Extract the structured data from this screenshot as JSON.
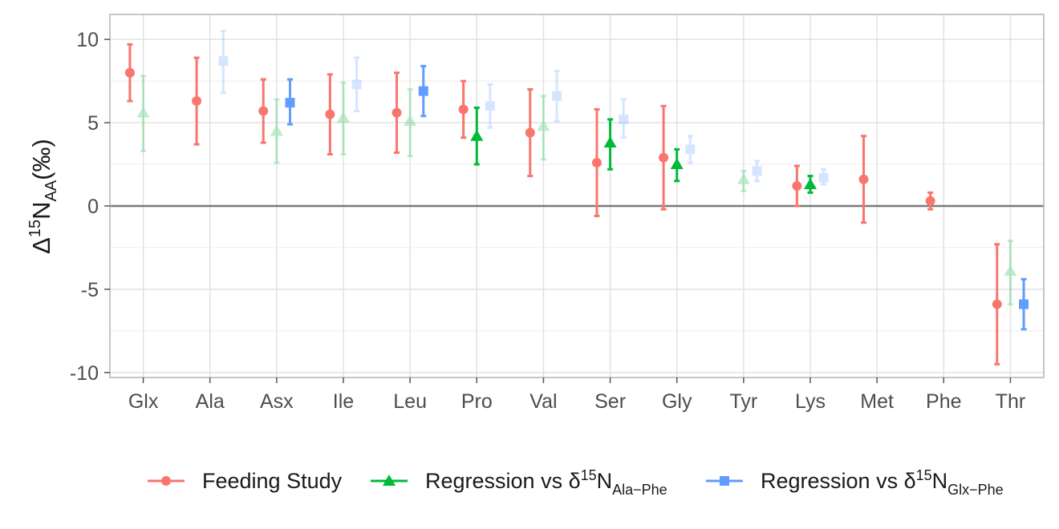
{
  "chart_data": {
    "type": "errorbar",
    "categories": [
      "Glx",
      "Ala",
      "Asx",
      "Ile",
      "Leu",
      "Pro",
      "Val",
      "Ser",
      "Gly",
      "Tyr",
      "Lys",
      "Met",
      "Phe",
      "Thr"
    ],
    "ylabel": {
      "delta": "Δ",
      "sup": "15",
      "main": "N",
      "sub": "AA",
      "unit": "(‰)"
    },
    "ylim": [
      -10.3,
      11.5
    ],
    "yticks": [
      10,
      5,
      0,
      -5,
      -10
    ],
    "ytick_labels": [
      "10",
      "5",
      "0",
      "-5",
      "-10"
    ],
    "reference_line_y": 0,
    "grid": true,
    "legend_position": "bottom",
    "series": [
      {
        "key": "feeding",
        "color": "#F8766D",
        "marker": "circle",
        "points": [
          {
            "x": "Glx",
            "y": 8.0,
            "lo": 6.3,
            "hi": 9.7,
            "faded": false
          },
          {
            "x": "Ala",
            "y": 6.3,
            "lo": 3.7,
            "hi": 8.9,
            "faded": false
          },
          {
            "x": "Asx",
            "y": 5.7,
            "lo": 3.8,
            "hi": 7.6,
            "faded": false
          },
          {
            "x": "Ile",
            "y": 5.5,
            "lo": 3.1,
            "hi": 7.9,
            "faded": false
          },
          {
            "x": "Leu",
            "y": 5.6,
            "lo": 3.2,
            "hi": 8.0,
            "faded": false
          },
          {
            "x": "Pro",
            "y": 5.8,
            "lo": 4.1,
            "hi": 7.5,
            "faded": false
          },
          {
            "x": "Val",
            "y": 4.4,
            "lo": 1.8,
            "hi": 7.0,
            "faded": false
          },
          {
            "x": "Ser",
            "y": 2.6,
            "lo": -0.6,
            "hi": 5.8,
            "faded": false
          },
          {
            "x": "Gly",
            "y": 2.9,
            "lo": -0.2,
            "hi": 6.0,
            "faded": false
          },
          {
            "x": "Lys",
            "y": 1.2,
            "lo": 0.0,
            "hi": 2.4,
            "faded": false
          },
          {
            "x": "Met",
            "y": 1.6,
            "lo": -1.0,
            "hi": 4.2,
            "faded": false
          },
          {
            "x": "Phe",
            "y": 0.3,
            "lo": -0.2,
            "hi": 0.8,
            "faded": false
          },
          {
            "x": "Thr",
            "y": -5.9,
            "lo": -9.5,
            "hi": -2.3,
            "faded": false
          }
        ]
      },
      {
        "key": "ala",
        "color": "#00BA38",
        "marker": "triangle",
        "points": [
          {
            "x": "Glx",
            "y": 5.6,
            "lo": 3.3,
            "hi": 7.8,
            "faded": true
          },
          {
            "x": "Asx",
            "y": 4.5,
            "lo": 2.6,
            "hi": 6.4,
            "faded": true
          },
          {
            "x": "Ile",
            "y": 5.3,
            "lo": 3.1,
            "hi": 7.4,
            "faded": true
          },
          {
            "x": "Leu",
            "y": 5.1,
            "lo": 3.0,
            "hi": 7.0,
            "faded": true
          },
          {
            "x": "Pro",
            "y": 4.2,
            "lo": 2.5,
            "hi": 5.9,
            "faded": false
          },
          {
            "x": "Val",
            "y": 4.8,
            "lo": 2.8,
            "hi": 6.6,
            "faded": true
          },
          {
            "x": "Ser",
            "y": 3.8,
            "lo": 2.2,
            "hi": 5.2,
            "faded": false
          },
          {
            "x": "Gly",
            "y": 2.5,
            "lo": 1.5,
            "hi": 3.4,
            "faded": false
          },
          {
            "x": "Tyr",
            "y": 1.6,
            "lo": 0.9,
            "hi": 2.1,
            "faded": true
          },
          {
            "x": "Lys",
            "y": 1.3,
            "lo": 0.8,
            "hi": 1.8,
            "faded": false
          },
          {
            "x": "Thr",
            "y": -3.9,
            "lo": -5.9,
            "hi": -2.1,
            "faded": true
          }
        ]
      },
      {
        "key": "glx",
        "color": "#619CFF",
        "marker": "square",
        "points": [
          {
            "x": "Ala",
            "y": 8.7,
            "lo": 6.8,
            "hi": 10.5,
            "faded": true
          },
          {
            "x": "Asx",
            "y": 6.2,
            "lo": 4.9,
            "hi": 7.6,
            "faded": false
          },
          {
            "x": "Ile",
            "y": 7.3,
            "lo": 5.7,
            "hi": 8.9,
            "faded": true
          },
          {
            "x": "Leu",
            "y": 6.9,
            "lo": 5.4,
            "hi": 8.4,
            "faded": false
          },
          {
            "x": "Pro",
            "y": 6.0,
            "lo": 4.7,
            "hi": 7.3,
            "faded": true
          },
          {
            "x": "Val",
            "y": 6.6,
            "lo": 5.1,
            "hi": 8.1,
            "faded": true
          },
          {
            "x": "Ser",
            "y": 5.2,
            "lo": 4.1,
            "hi": 6.4,
            "faded": true
          },
          {
            "x": "Gly",
            "y": 3.4,
            "lo": 2.6,
            "hi": 4.2,
            "faded": true
          },
          {
            "x": "Tyr",
            "y": 2.1,
            "lo": 1.5,
            "hi": 2.7,
            "faded": true
          },
          {
            "x": "Lys",
            "y": 1.7,
            "lo": 1.3,
            "hi": 2.2,
            "faded": true
          },
          {
            "x": "Thr",
            "y": -5.9,
            "lo": -7.4,
            "hi": -4.4,
            "faded": false
          }
        ]
      }
    ]
  },
  "legend": {
    "feeding": {
      "label": "Feeding Study"
    },
    "ala": {
      "prefix": "Regression vs δ",
      "sup": "15",
      "main": "N",
      "sub": "Ala−Phe"
    },
    "glx": {
      "prefix": "Regression vs δ",
      "sup": "15",
      "main": "N",
      "sub": "Glx−Phe"
    }
  }
}
